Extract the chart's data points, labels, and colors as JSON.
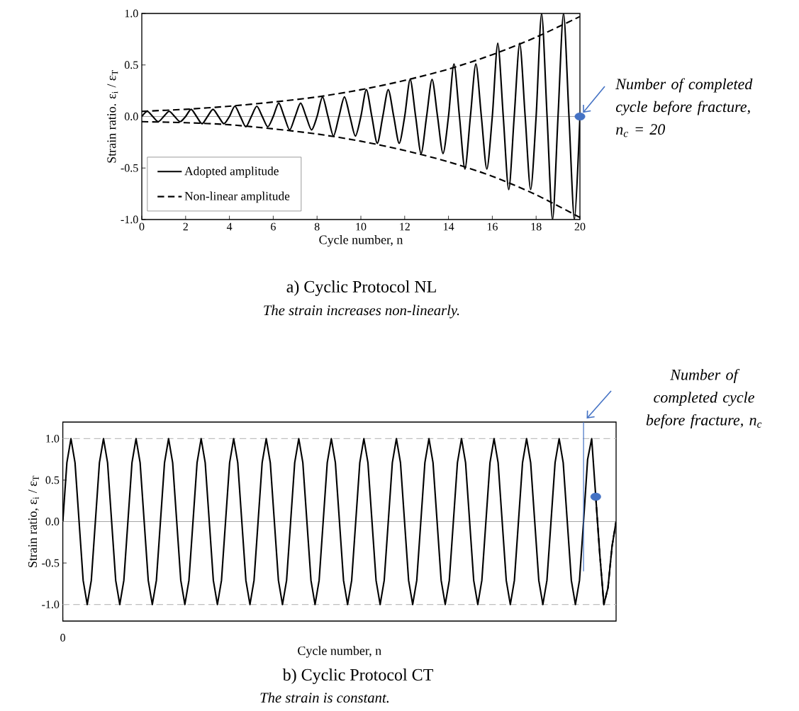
{
  "chart_data": [
    {
      "type": "line",
      "title": "a) Cyclic Protocol NL",
      "subtitle": "The strain increases non-linearly.",
      "xlabel": "Cycle number, n",
      "ylabel": "Strain ratio. ε$_{i}$ / ε$_{T}$",
      "xlim": [
        0,
        20
      ],
      "xticks": [
        0,
        2,
        4,
        6,
        8,
        10,
        12,
        14,
        16,
        18,
        20
      ],
      "ylim": [
        -1,
        1
      ],
      "yticks": [
        {
          "value": -1,
          "label": "-1.0"
        },
        {
          "value": -0.5,
          "label": "-0.5"
        },
        {
          "value": 0,
          "label": "0.0"
        },
        {
          "value": 0.5,
          "label": "0.5"
        },
        {
          "value": 1,
          "label": "1.0"
        }
      ],
      "legend": "bottom left",
      "ref_lines": [
        {
          "axis": "y",
          "value": 0,
          "color": "#a6a6a6",
          "line_style": "solid"
        }
      ],
      "annotations": [
        {
          "text": "Number of completed cycle before fracture, n$_{c}$ = 20",
          "x": 20,
          "y": 0
        }
      ],
      "series": [
        {
          "name": "Adopted amplitude",
          "color": "#000000",
          "line_style": "solid",
          "x": [
            0,
            0.25,
            0.5,
            0.75,
            1,
            1.25,
            1.5,
            1.75,
            2,
            2.25,
            2.5,
            2.75,
            3,
            3.25,
            3.5,
            3.75,
            4,
            4.25,
            4.5,
            4.75,
            5,
            5.25,
            5.5,
            5.75,
            6,
            6.25,
            6.5,
            6.75,
            7,
            7.25,
            7.5,
            7.75,
            8,
            8.25,
            8.5,
            8.75,
            9,
            9.25,
            9.5,
            9.75,
            10,
            10.25,
            10.5,
            10.75,
            11,
            11.25,
            11.5,
            11.75,
            12,
            12.25,
            12.5,
            12.75,
            13,
            13.25,
            13.5,
            13.75,
            14,
            14.25,
            14.5,
            14.75,
            15,
            15.25,
            15.5,
            15.75,
            16,
            16.25,
            16.5,
            16.75,
            17,
            17.25,
            17.5,
            17.75,
            18,
            18.25,
            18.5,
            18.75,
            19,
            19.25,
            19.5,
            19.75,
            20
          ],
          "values": [
            0,
            0.05,
            0,
            -0.05,
            0,
            0.05,
            0,
            -0.05,
            0,
            0.07,
            0,
            -0.07,
            0,
            0.07,
            0,
            -0.07,
            0,
            0.1,
            0,
            -0.1,
            0,
            0.1,
            0,
            -0.1,
            0,
            0.13,
            0,
            -0.13,
            0,
            0.13,
            0,
            -0.13,
            0,
            0.19,
            0,
            -0.19,
            0,
            0.19,
            0,
            -0.19,
            0,
            0.26,
            0,
            -0.26,
            0,
            0.26,
            0,
            -0.26,
            0,
            0.36,
            0,
            -0.36,
            0,
            0.36,
            0,
            -0.36,
            0,
            0.51,
            0,
            -0.51,
            0,
            0.51,
            0,
            -0.51,
            0,
            0.71,
            0,
            -0.71,
            0,
            0.71,
            0,
            -0.71,
            0,
            1,
            0,
            -1,
            0,
            1,
            0,
            -1,
            0
          ]
        },
        {
          "name": "Non-linear amplitude",
          "color": "#000000",
          "line_style": "dashed",
          "x": [
            0,
            2,
            4,
            6,
            8,
            10,
            12,
            14,
            16,
            18,
            20
          ],
          "values": [
            0.05,
            0.07,
            0.1,
            0.14,
            0.19,
            0.26,
            0.35,
            0.46,
            0.6,
            0.77,
            0.97
          ]
        },
        {
          "color": "#000000",
          "line_style": "dashed",
          "x": [
            0,
            2,
            4,
            6,
            8,
            10,
            12,
            14,
            16,
            18,
            20
          ],
          "values": [
            -0.05,
            -0.06,
            -0.08,
            -0.12,
            -0.17,
            -0.24,
            -0.33,
            -0.44,
            -0.58,
            -0.76,
            -0.98
          ]
        },
        {
          "type": "scatter",
          "color": "#4472c4",
          "marker": "circle",
          "x": [
            20
          ],
          "values": [
            0
          ]
        }
      ]
    },
    {
      "type": "line",
      "title": "b) Cyclic Protocol CT",
      "subtitle": "The strain is constant.",
      "xlabel": "Cycle number, n",
      "ylabel": "Strain ratio, ε$_{i}$ / ε$_{T}$",
      "ylim": [
        -1.2,
        1.2
      ],
      "yticks": [
        {
          "value": -1,
          "label": "-1.0"
        },
        {
          "value": -0.5,
          "label": "-0.5"
        },
        {
          "value": 0,
          "label": "0.0"
        },
        {
          "value": 0.5,
          "label": "0.5"
        },
        {
          "value": 1,
          "label": "1.0"
        }
      ],
      "categories": [
        "0",
        null,
        null,
        null,
        null,
        null,
        null,
        null,
        null,
        null,
        null,
        null,
        null,
        null,
        null,
        null,
        null,
        null,
        null,
        null,
        null,
        null,
        null,
        null,
        null,
        null,
        null,
        null,
        null,
        null,
        null,
        null,
        null,
        null,
        null,
        null,
        null,
        null,
        null,
        null,
        null,
        null,
        null,
        null,
        null,
        null,
        null,
        null,
        null,
        null,
        null,
        null,
        null,
        null,
        null,
        null,
        null,
        null,
        null,
        null,
        null,
        null,
        null,
        null,
        null,
        null,
        null,
        null,
        null,
        null,
        null,
        null,
        null,
        null,
        null,
        null,
        null,
        null,
        null,
        null,
        null,
        null,
        null,
        null,
        null,
        null,
        null,
        null,
        null,
        null,
        null,
        null,
        null,
        null,
        null,
        null,
        null,
        null,
        null,
        null,
        null,
        null,
        null,
        null,
        null,
        null,
        null,
        null,
        null,
        null,
        null,
        null,
        null,
        null,
        null,
        null,
        null,
        null,
        null,
        null,
        null,
        null,
        null,
        null,
        null,
        null,
        null,
        null,
        null,
        null,
        null,
        null,
        null,
        null,
        null,
        null,
        null
      ],
      "ref_lines": [
        {
          "axis": "y",
          "value": 0,
          "color": "#a6a6a6",
          "line_style": "solid"
        },
        {
          "axis": "y",
          "value": 1,
          "color": "#bfbfbf",
          "line_style": "dashed"
        },
        {
          "axis": "y",
          "value": -1,
          "color": "#bfbfbf",
          "line_style": "dashed"
        }
      ],
      "annotations": [
        "Number of completed cycle before fracture, n$_{c}$"
      ],
      "series": [
        {
          "color": "#000000",
          "line_style": "solid",
          "values": [
            0,
            0.71,
            1,
            0.71,
            0,
            -0.71,
            -1,
            -0.71,
            0,
            0.71,
            1,
            0.71,
            0,
            -0.71,
            -1,
            -0.71,
            0,
            0.71,
            1,
            0.71,
            0,
            -0.71,
            -1,
            -0.71,
            0,
            0.71,
            1,
            0.71,
            0,
            -0.71,
            -1,
            -0.71,
            0,
            0.71,
            1,
            0.71,
            0,
            -0.71,
            -1,
            -0.71,
            0,
            0.71,
            1,
            0.71,
            0,
            -0.71,
            -1,
            -0.71,
            0,
            0.71,
            1,
            0.71,
            0,
            -0.71,
            -1,
            -0.71,
            0,
            0.71,
            1,
            0.71,
            0,
            -0.71,
            -1,
            -0.71,
            0,
            0.71,
            1,
            0.71,
            0,
            -0.71,
            -1,
            -0.71,
            0,
            0.71,
            1,
            0.71,
            0,
            -0.71,
            -1,
            -0.71,
            0,
            0.71,
            1,
            0.71,
            0,
            -0.71,
            -1,
            -0.71,
            0,
            0.71,
            1,
            0.71,
            0,
            -0.71,
            -1,
            -0.71,
            0,
            0.71,
            1,
            0.71,
            0,
            -0.71,
            -1,
            -0.71,
            0,
            0.71,
            1,
            0.71,
            0,
            -0.71,
            -1,
            -0.71,
            0,
            0.71,
            1,
            0.71,
            0,
            -0.71,
            -1,
            -0.71,
            0,
            0.71,
            1,
            0.71,
            0,
            -0.71,
            -1,
            -0.71,
            0,
            0.75,
            1,
            0.3,
            -0.4,
            -1,
            -0.8,
            -0.3,
            0
          ]
        },
        {
          "color": "#000000",
          "line_style": "dashed",
          "values": [
            null,
            null,
            null,
            null,
            null,
            null,
            null,
            null,
            null,
            null,
            null,
            null,
            null,
            null,
            null,
            null,
            null,
            null,
            null,
            null,
            null,
            null,
            null,
            null,
            null,
            null,
            null,
            null,
            null,
            null,
            null,
            null,
            null,
            null,
            null,
            null,
            null,
            null,
            null,
            null,
            null,
            null,
            null,
            null,
            null,
            null,
            null,
            null,
            null,
            null,
            null,
            null,
            null,
            null,
            null,
            null,
            null,
            null,
            null,
            null,
            null,
            null,
            null,
            null,
            null,
            null,
            null,
            null,
            null,
            null,
            null,
            null,
            null,
            null,
            null,
            null,
            null,
            null,
            null,
            null,
            null,
            null,
            null,
            null,
            null,
            null,
            null,
            null,
            null,
            null,
            null,
            null,
            null,
            null,
            null,
            null,
            null,
            null,
            null,
            null,
            null,
            null,
            null,
            null,
            null,
            null,
            null,
            null,
            null,
            null,
            null,
            null,
            null,
            null,
            null,
            null,
            null,
            null,
            null,
            null,
            null,
            null,
            null,
            null,
            null,
            null,
            null,
            null,
            null,
            null,
            null,
            0.3,
            -0.4,
            -1,
            -0.8,
            -0.3,
            0
          ]
        },
        {
          "type": "scatter",
          "color": "#4472c4",
          "marker": "circle",
          "values": [
            null,
            null,
            null,
            null,
            null,
            null,
            null,
            null,
            null,
            null,
            null,
            null,
            null,
            null,
            null,
            null,
            null,
            null,
            null,
            null,
            null,
            null,
            null,
            null,
            null,
            null,
            null,
            null,
            null,
            null,
            null,
            null,
            null,
            null,
            null,
            null,
            null,
            null,
            null,
            null,
            null,
            null,
            null,
            null,
            null,
            null,
            null,
            null,
            null,
            null,
            null,
            null,
            null,
            null,
            null,
            null,
            null,
            null,
            null,
            null,
            null,
            null,
            null,
            null,
            null,
            null,
            null,
            null,
            null,
            null,
            null,
            null,
            null,
            null,
            null,
            null,
            null,
            null,
            null,
            null,
            null,
            null,
            null,
            null,
            null,
            null,
            null,
            null,
            null,
            null,
            null,
            null,
            null,
            null,
            null,
            null,
            null,
            null,
            null,
            null,
            null,
            null,
            null,
            null,
            null,
            null,
            null,
            null,
            null,
            null,
            null,
            null,
            null,
            null,
            null,
            null,
            null,
            null,
            null,
            null,
            null,
            null,
            null,
            null,
            null,
            null,
            null,
            null,
            null,
            null,
            null,
            0.3,
            null,
            null,
            null,
            null,
            null
          ]
        }
      ]
    }
  ]
}
